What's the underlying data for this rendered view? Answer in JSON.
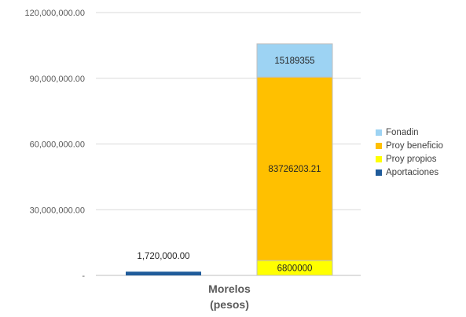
{
  "chart_data": {
    "type": "bar",
    "stacked": true,
    "categories": [
      "",
      "Morelos\n(pesos)"
    ],
    "series": [
      {
        "name": "Aportaciones",
        "color": "#1F5B9A",
        "values": [
          1720000,
          0
        ],
        "label": "1,720,000.00"
      },
      {
        "name": "Proy propios",
        "color": "#FFFF00",
        "values": [
          0,
          6800000
        ],
        "label": "6800000"
      },
      {
        "name": "Proy beneficio",
        "color": "#FFC000",
        "values": [
          0,
          83726203.21
        ],
        "label": "83726203.21"
      },
      {
        "name": "Fonadin",
        "color": "#9DD3F3",
        "values": [
          0,
          15189355
        ],
        "label": "15189355"
      }
    ],
    "legend_order": [
      "Fonadin",
      "Proy beneficio",
      "Proy propios",
      "Aportaciones"
    ],
    "yticks": [
      {
        "value": 0,
        "label": "-"
      },
      {
        "value": 30000000,
        "label": "30,000,000.00"
      },
      {
        "value": 60000000,
        "label": "60,000,000.00"
      },
      {
        "value": 90000000,
        "label": "90,000,000.00"
      },
      {
        "value": 120000000,
        "label": "120,000,000.00"
      }
    ],
    "ylim": [
      0,
      120000000
    ],
    "category_label_lines": [
      "Morelos",
      "(pesos)"
    ],
    "grid": true,
    "legend_position": "right"
  }
}
